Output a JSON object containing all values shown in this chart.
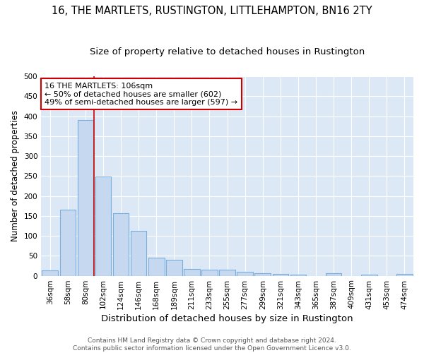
{
  "title": "16, THE MARTLETS, RUSTINGTON, LITTLEHAMPTON, BN16 2TY",
  "subtitle": "Size of property relative to detached houses in Rustington",
  "xlabel": "Distribution of detached houses by size in Rustington",
  "ylabel": "Number of detached properties",
  "categories": [
    "36sqm",
    "58sqm",
    "80sqm",
    "102sqm",
    "124sqm",
    "146sqm",
    "168sqm",
    "189sqm",
    "211sqm",
    "233sqm",
    "255sqm",
    "277sqm",
    "299sqm",
    "321sqm",
    "343sqm",
    "365sqm",
    "387sqm",
    "409sqm",
    "431sqm",
    "453sqm",
    "474sqm"
  ],
  "values": [
    13,
    165,
    390,
    248,
    157,
    113,
    45,
    40,
    17,
    15,
    15,
    9,
    6,
    5,
    3,
    0,
    6,
    0,
    3,
    0,
    4
  ],
  "bar_color": "#c5d8f0",
  "bar_edge_color": "#7aaedc",
  "fig_bg_color": "#ffffff",
  "ax_bg_color": "#dce8f5",
  "grid_color": "#ffffff",
  "red_line_index": 3,
  "annotation_text": "16 THE MARTLETS: 106sqm\n← 50% of detached houses are smaller (602)\n49% of semi-detached houses are larger (597) →",
  "annotation_box_color": "#ffffff",
  "annotation_box_edge": "#cc0000",
  "footnote": "Contains HM Land Registry data © Crown copyright and database right 2024.\nContains public sector information licensed under the Open Government Licence v3.0.",
  "ylim": [
    0,
    500
  ],
  "title_fontsize": 10.5,
  "subtitle_fontsize": 9.5,
  "xlabel_fontsize": 9.5,
  "ylabel_fontsize": 8.5,
  "tick_fontsize": 7.5,
  "annot_fontsize": 8,
  "footnote_fontsize": 6.5
}
